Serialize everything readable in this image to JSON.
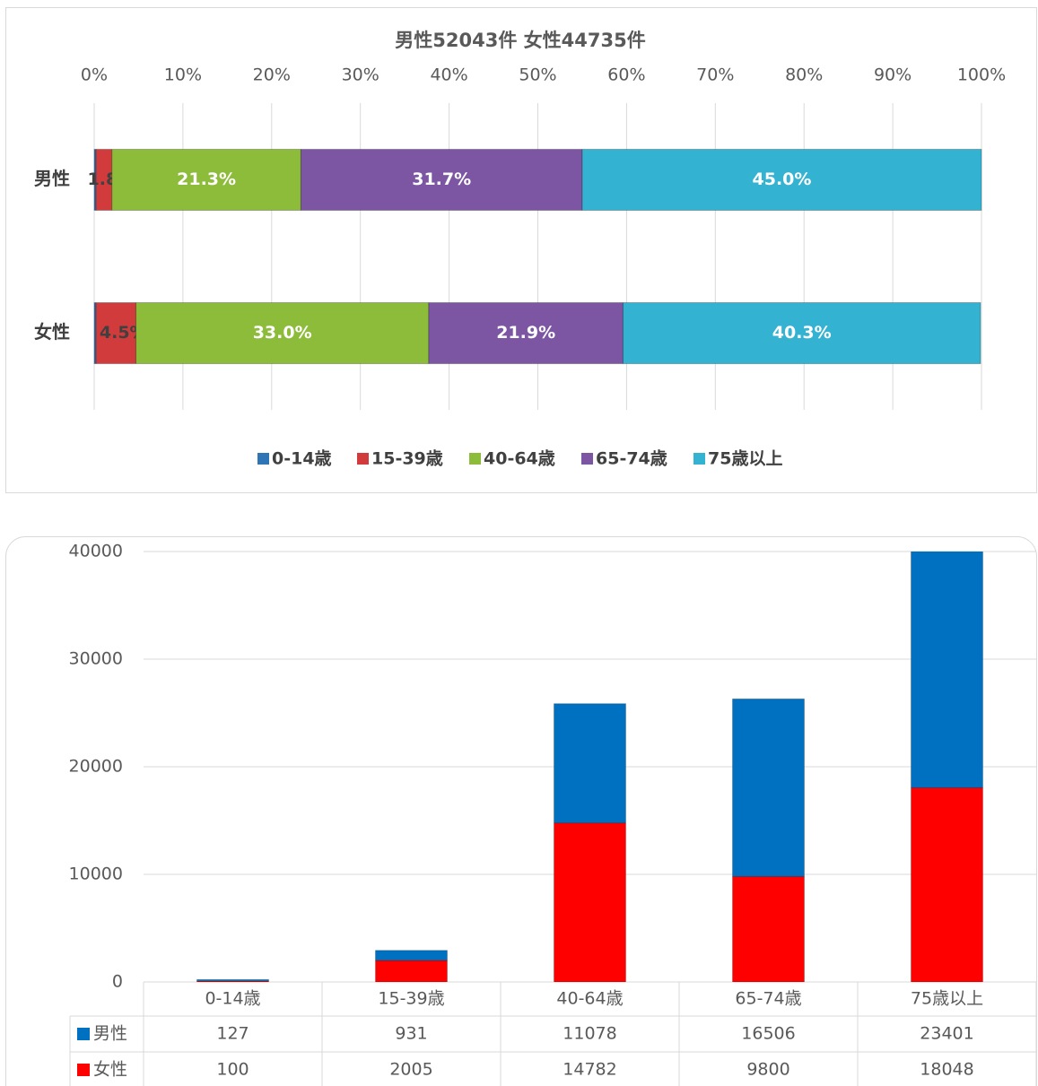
{
  "chart_data": [
    {
      "type": "stacked_barh",
      "title": "男性52043件 女性44735件",
      "categories": [
        "男性",
        "女性"
      ],
      "series": [
        {
          "name": "0-14歳",
          "color": "#2e75b6",
          "values": [
            0.2,
            0.2
          ]
        },
        {
          "name": "15-39歳",
          "color": "#d23b3b",
          "values": [
            1.8,
            4.5
          ],
          "value_labels": [
            "1.8%",
            "4.5%"
          ]
        },
        {
          "name": "40-64歳",
          "color": "#8dbb3a",
          "values": [
            21.3,
            33.0
          ],
          "value_labels": [
            "21.3%",
            "33.0%"
          ]
        },
        {
          "name": "65-74歳",
          "color": "#7c55a3",
          "values": [
            31.7,
            21.9
          ],
          "value_labels": [
            "31.7%",
            "21.9%"
          ]
        },
        {
          "name": "75歳以上",
          "color": "#33b2d2",
          "values": [
            45.0,
            40.3
          ],
          "value_labels": [
            "45.0%",
            "40.3%"
          ]
        }
      ],
      "xlim": [
        0,
        100
      ],
      "xticks": [
        {
          "value": 0,
          "label": "0%"
        },
        {
          "value": 10,
          "label": "10%"
        },
        {
          "value": 20,
          "label": "20%"
        },
        {
          "value": 30,
          "label": "30%"
        },
        {
          "value": 40,
          "label": "40%"
        },
        {
          "value": 50,
          "label": "50%"
        },
        {
          "value": 60,
          "label": "60%"
        },
        {
          "value": 70,
          "label": "70%"
        },
        {
          "value": 80,
          "label": "80%"
        },
        {
          "value": 90,
          "label": "90%"
        },
        {
          "value": 100,
          "label": "100%"
        }
      ],
      "grid": true,
      "legend": "bottom"
    },
    {
      "type": "stacked_bar",
      "categories": [
        "0-14歳",
        "15-39歳",
        "40-64歳",
        "65-74歳",
        "75歳以上"
      ],
      "series": [
        {
          "name": "男性",
          "color": "#0070c0",
          "values": [
            127,
            931,
            11078,
            16506,
            23401
          ]
        },
        {
          "name": "女性",
          "color": "#ff0000",
          "values": [
            100,
            2005,
            14782,
            9800,
            18048
          ]
        }
      ],
      "ylim": [
        0,
        40000
      ],
      "yticks": [
        0,
        10000,
        20000,
        30000,
        40000
      ],
      "grid": true,
      "data_table": true
    }
  ]
}
